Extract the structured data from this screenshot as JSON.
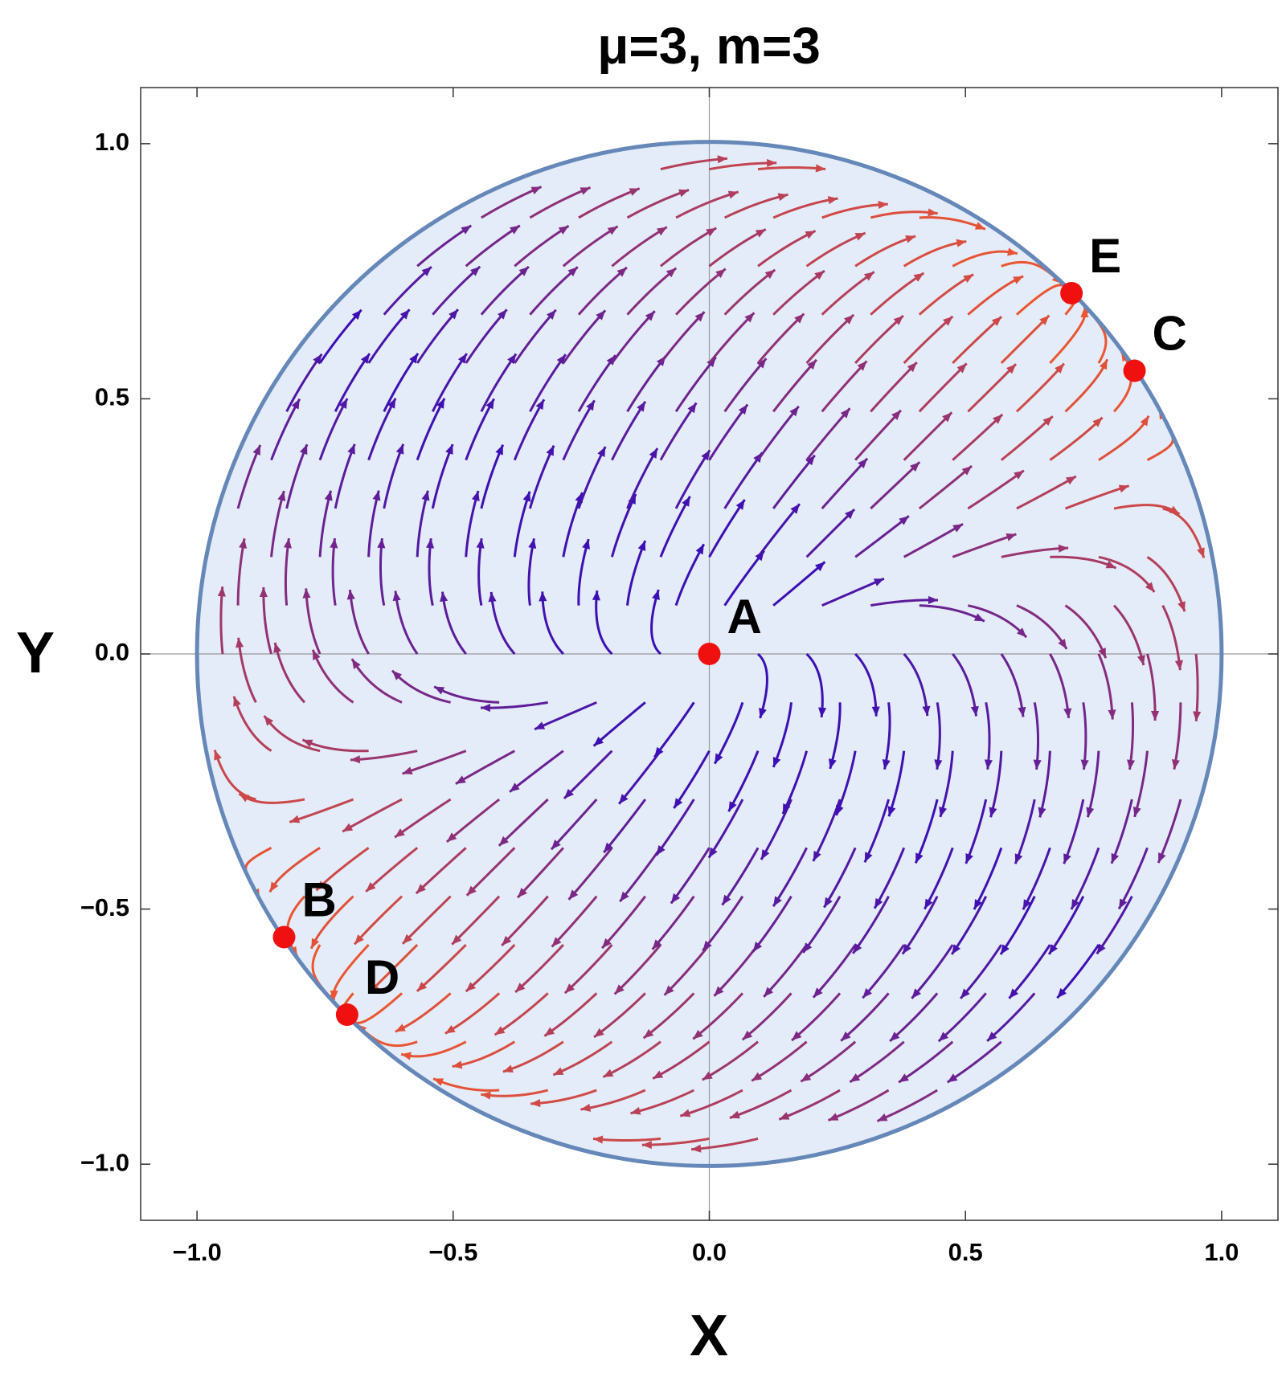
{
  "chart_data": {
    "type": "scatter",
    "title": "μ=3, m=3",
    "xlabel": "X",
    "ylabel": "Y",
    "xlim": [
      -1.11,
      1.11
    ],
    "ylim": [
      -1.11,
      1.11
    ],
    "xticks": [
      {
        "value": -1,
        "label": "−1.0"
      },
      {
        "value": -0.5,
        "label": "−0.5"
      },
      {
        "value": 0,
        "label": "0.0"
      },
      {
        "value": 0.5,
        "label": "0.5"
      },
      {
        "value": 1,
        "label": "1.0"
      }
    ],
    "yticks": [
      {
        "value": -1,
        "label": "−1.0"
      },
      {
        "value": -0.5,
        "label": "−0.5"
      },
      {
        "value": 0,
        "label": "0.0"
      },
      {
        "value": 0.5,
        "label": "0.5"
      },
      {
        "value": 1,
        "label": "1.0"
      }
    ],
    "points": {
      "labels": [
        "A",
        "B",
        "C",
        "D",
        "E"
      ],
      "x": [
        0,
        -0.83,
        0.83,
        -0.707,
        0.707
      ],
      "y": [
        0,
        -0.555,
        0.555,
        -0.707,
        0.707
      ],
      "color": "#f01010"
    }
  }
}
